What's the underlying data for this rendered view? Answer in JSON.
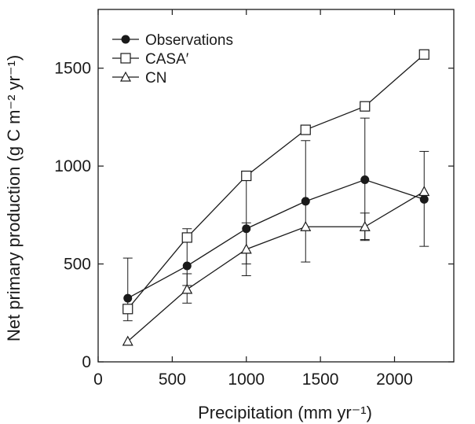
{
  "chart_data": {
    "type": "line",
    "title": "",
    "xlabel": "Precipitation (mm yr⁻¹)",
    "ylabel": "Net primary production (g C m⁻² yr⁻¹)",
    "xlim": [
      0,
      2400
    ],
    "ylim": [
      0,
      1800
    ],
    "xticks": [
      0,
      500,
      1000,
      1500,
      2000
    ],
    "yticks": [
      0,
      500,
      1000,
      1500
    ],
    "xtick_labels": [
      "0",
      "500",
      "1000",
      "1500",
      "2000"
    ],
    "ytick_labels": [
      "0",
      "500",
      "1000",
      "1500"
    ],
    "grid": false,
    "legend_position": "top-left",
    "x": [
      200,
      600,
      1000,
      1400,
      1800,
      2200
    ],
    "series": [
      {
        "name": "Observations",
        "marker": "filled-circle",
        "values": [
          325,
          490,
          680,
          820,
          930,
          830
        ],
        "error_low": [
          210,
          390,
          500,
          510,
          620,
          590
        ],
        "error_high": [
          530,
          680,
          950,
          1130,
          1245,
          1075
        ]
      },
      {
        "name": "CASA′",
        "marker": "open-square",
        "values": [
          270,
          635,
          950,
          1185,
          1305,
          1570
        ]
      },
      {
        "name": "CN",
        "marker": "open-triangle",
        "values": [
          105,
          370,
          575,
          690,
          690,
          870
        ],
        "error_low": [
          null,
          300,
          440,
          null,
          625,
          null
        ],
        "error_high": [
          null,
          450,
          710,
          null,
          760,
          null
        ]
      }
    ],
    "colors": {
      "line": "#1a1a1a",
      "marker_fill": "#1a1a1a",
      "open_fill": "#ffffff"
    }
  }
}
